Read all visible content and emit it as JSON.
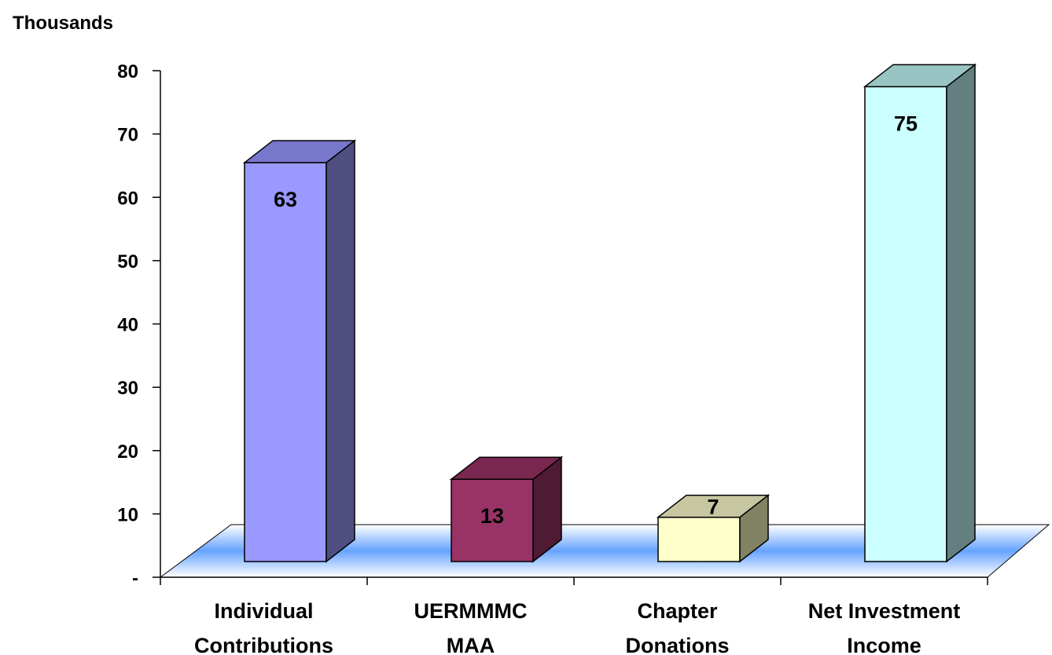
{
  "chart_data": {
    "type": "bar",
    "style": "3d-column",
    "ylabel": "Thousands",
    "ylim": [
      0,
      80
    ],
    "yticks": [
      "-",
      "10",
      "20",
      "30",
      "40",
      "50",
      "60",
      "70",
      "80"
    ],
    "yticks_values": [
      0,
      10,
      20,
      30,
      40,
      50,
      60,
      70,
      80
    ],
    "categories": [
      [
        "Individual",
        "Contributions"
      ],
      [
        "UERMMMC",
        "MAA"
      ],
      [
        "Chapter",
        "Donations"
      ],
      [
        "Net Investment",
        "Income"
      ]
    ],
    "series": [
      {
        "values": [
          63,
          13,
          7,
          75
        ]
      }
    ],
    "data_labels": [
      "63",
      "13",
      "7",
      "75"
    ],
    "grid": false,
    "legend": "none",
    "colors": {
      "front": [
        "#9999ff",
        "#993366",
        "#ffffcc",
        "#ccffff"
      ],
      "side": [
        "#4f4f82",
        "#4f1a34",
        "#828264",
        "#647f7f"
      ],
      "top": [
        "#7777cc",
        "#7a2750",
        "#c6c6a0",
        "#99c4c4"
      ],
      "floor_top": "#ffffff",
      "floor_mid": "#66a3ff"
    }
  }
}
